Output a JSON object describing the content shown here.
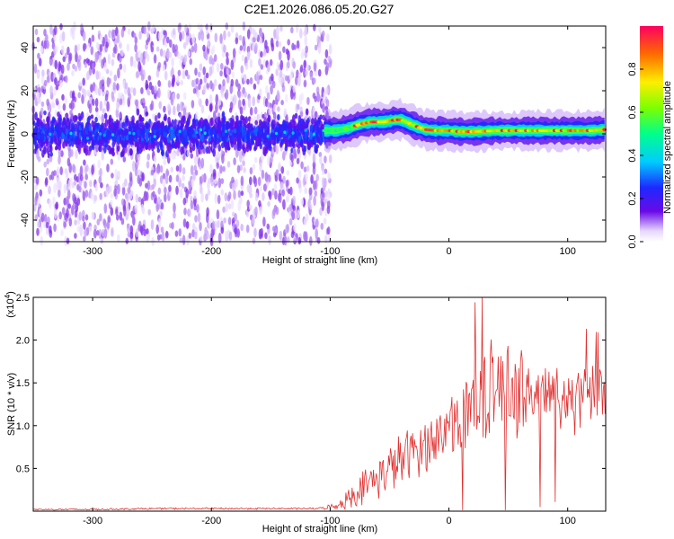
{
  "title": "C2E1.2026.086.05.20.G27",
  "chart_data": [
    {
      "type": "heatmap",
      "name": "spectrogram",
      "xlabel": "Height of straight line (km)",
      "ylabel": "Frequency (Hz)",
      "xlim": [
        -350,
        132
      ],
      "ylim": [
        -50,
        50
      ],
      "xticks": [
        -300,
        -200,
        -100,
        0,
        100
      ],
      "yticks": [
        -40,
        -20,
        0,
        20,
        40
      ],
      "colorbar": {
        "label": "Normalized spectral amplitude",
        "range": [
          0,
          1
        ],
        "ticks": [
          0.0,
          0.2,
          0.4,
          0.6,
          0.8
        ]
      },
      "noise_region_x": [
        -350,
        -103
      ],
      "ridge": {
        "x": [
          -105,
          -95,
          -85,
          -75,
          -65,
          -55,
          -45,
          -40,
          -30,
          -20,
          -10,
          0,
          10,
          20,
          40,
          60,
          80,
          100,
          120,
          132
        ],
        "freq": [
          1.5,
          1.5,
          2.5,
          4.5,
          5.5,
          5.5,
          6.5,
          6.5,
          4.0,
          2.0,
          1.5,
          1.5,
          1.0,
          1.0,
          1.5,
          1.5,
          1.5,
          1.5,
          1.5,
          2.0
        ]
      }
    },
    {
      "type": "line",
      "name": "snr",
      "xlabel": "Height of straight line (km)",
      "ylabel": "SNR (10 * v/v)",
      "yscale_label": "(x10",
      "yscale_exp": "4",
      "xlim": [
        -350,
        132
      ],
      "ylim": [
        0,
        2.5
      ],
      "xticks": [
        -300,
        -200,
        -100,
        0,
        100
      ],
      "yticks": [
        0.5,
        1.0,
        1.5,
        2.0,
        2.5
      ],
      "series": [
        {
          "name": "SNR",
          "color": "#e03030",
          "x": [
            -350,
            -300,
            -250,
            -200,
            -150,
            -110,
            -95,
            -85,
            -75,
            -65,
            -55,
            -45,
            -35,
            -25,
            -15,
            -5,
            0,
            10,
            20,
            30,
            45,
            60,
            80,
            100,
            115,
            132
          ],
          "mean": [
            0.02,
            0.02,
            0.03,
            0.03,
            0.03,
            0.03,
            0.06,
            0.15,
            0.25,
            0.35,
            0.45,
            0.55,
            0.65,
            0.75,
            0.8,
            0.9,
            1.0,
            1.15,
            1.3,
            1.4,
            1.45,
            1.4,
            1.35,
            1.3,
            1.3,
            1.4
          ],
          "amp": [
            0.01,
            0.01,
            0.01,
            0.01,
            0.01,
            0.01,
            0.04,
            0.12,
            0.18,
            0.22,
            0.26,
            0.3,
            0.3,
            0.32,
            0.32,
            0.34,
            0.36,
            0.4,
            0.5,
            0.55,
            0.55,
            0.5,
            0.45,
            0.4,
            0.38,
            0.3
          ]
        }
      ]
    }
  ]
}
